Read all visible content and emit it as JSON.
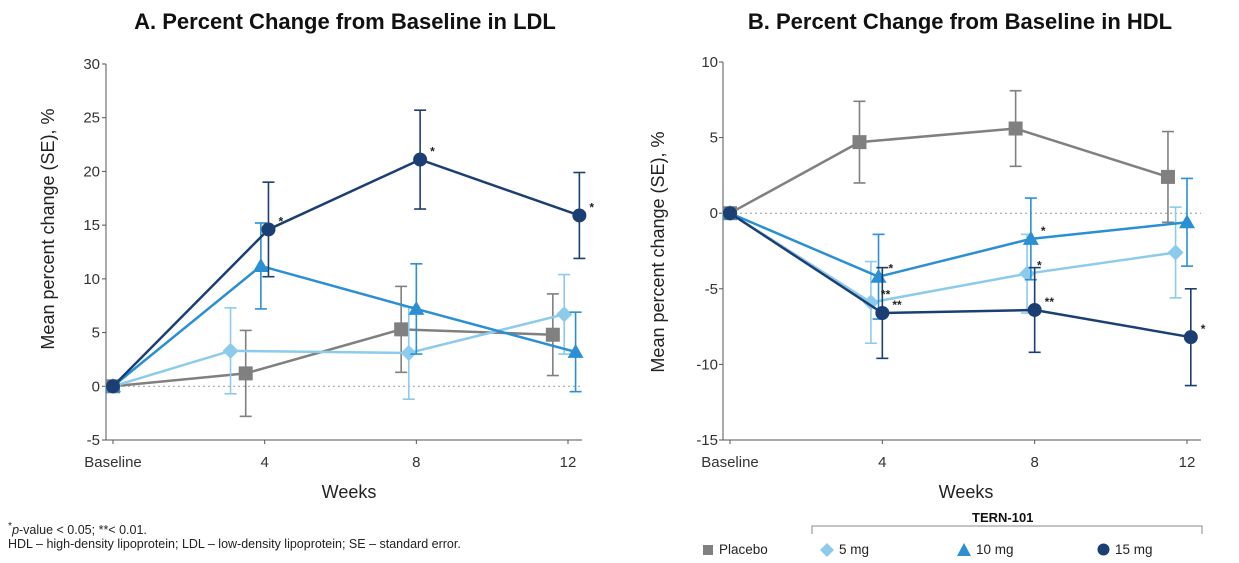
{
  "chart_data": [
    {
      "type": "line",
      "title": "A. Percent Change from Baseline in LDL",
      "xlabel": "Weeks",
      "ylabel": "Mean percent change (SE), %",
      "x_ticks": [
        "Baseline",
        "4",
        "8",
        "12"
      ],
      "x_values": [
        0,
        4,
        8,
        12
      ],
      "ylim": [
        -5,
        30
      ],
      "y_ticks": [
        -5,
        0,
        5,
        10,
        15,
        20,
        25,
        30
      ],
      "reference_line": 0,
      "series": [
        {
          "key": "placebo",
          "x": [
            0,
            4,
            8,
            12
          ],
          "values": [
            0,
            1.2,
            5.3,
            4.8
          ],
          "se": [
            0,
            4.0,
            4.0,
            3.8
          ],
          "x_offset": [
            0,
            -0.5,
            -0.4,
            -0.4
          ]
        },
        {
          "key": "5mg",
          "x": [
            0,
            4,
            8,
            12
          ],
          "values": [
            0,
            3.3,
            3.1,
            6.7
          ],
          "se": [
            0,
            4.0,
            4.3,
            3.7
          ],
          "x_offset": [
            0,
            -0.9,
            -0.2,
            -0.1
          ]
        },
        {
          "key": "10mg",
          "x": [
            0,
            4,
            8,
            12
          ],
          "values": [
            0,
            11.2,
            7.2,
            3.2
          ],
          "se": [
            0,
            4.0,
            4.2,
            3.7
          ],
          "x_offset": [
            0,
            -0.1,
            0.0,
            0.2
          ]
        },
        {
          "key": "15mg",
          "x": [
            0,
            4,
            8,
            12
          ],
          "values": [
            0,
            14.6,
            21.1,
            15.9
          ],
          "se": [
            0,
            4.4,
            4.6,
            4.0
          ],
          "x_offset": [
            0,
            0.1,
            0.1,
            0.3
          ]
        }
      ],
      "annotations": [
        {
          "text": "*",
          "series": "15mg",
          "point": 1
        },
        {
          "text": "*",
          "series": "15mg",
          "point": 2
        },
        {
          "text": "*",
          "series": "15mg",
          "point": 3
        }
      ]
    },
    {
      "type": "line",
      "title": "B. Percent Change from Baseline in HDL",
      "xlabel": "Weeks",
      "ylabel": "Mean percent change (SE),  %",
      "x_ticks": [
        "Baseline",
        "4",
        "8",
        "12"
      ],
      "x_values": [
        0,
        4,
        8,
        12
      ],
      "ylim": [
        -15,
        10
      ],
      "y_ticks": [
        -15,
        -10,
        -5,
        0,
        5,
        10
      ],
      "reference_line": 0,
      "series": [
        {
          "key": "placebo",
          "x": [
            0,
            4,
            8,
            12
          ],
          "values": [
            0,
            4.7,
            5.6,
            2.4
          ],
          "se": [
            0,
            2.7,
            2.5,
            3.0
          ],
          "x_offset": [
            0,
            -0.6,
            -0.5,
            -0.5
          ]
        },
        {
          "key": "5mg",
          "x": [
            0,
            4,
            8,
            12
          ],
          "values": [
            0,
            -5.9,
            -4.0,
            -2.6
          ],
          "se": [
            0,
            2.7,
            2.6,
            3.0
          ],
          "x_offset": [
            0,
            -0.3,
            -0.2,
            -0.3
          ]
        },
        {
          "key": "10mg",
          "x": [
            0,
            4,
            8,
            12
          ],
          "values": [
            0,
            -4.2,
            -1.7,
            -0.6
          ],
          "se": [
            0,
            2.8,
            2.7,
            2.9
          ],
          "x_offset": [
            0,
            -0.1,
            -0.1,
            0.0
          ]
        },
        {
          "key": "15mg",
          "x": [
            0,
            4,
            8,
            12
          ],
          "values": [
            0,
            -6.6,
            -6.4,
            -8.2
          ],
          "se": [
            0,
            3.0,
            2.8,
            3.2
          ],
          "x_offset": [
            0,
            0.0,
            0.0,
            0.1
          ]
        }
      ],
      "annotations": [
        {
          "text": "**",
          "series": "5mg",
          "point": 1
        },
        {
          "text": "*",
          "series": "10mg",
          "point": 1
        },
        {
          "text": "**",
          "series": "15mg",
          "point": 1
        },
        {
          "text": "*",
          "series": "5mg",
          "point": 2
        },
        {
          "text": "*",
          "series": "10mg",
          "point": 2
        },
        {
          "text": "**",
          "series": "15mg",
          "point": 2
        },
        {
          "text": "*",
          "series": "15mg",
          "point": 3
        }
      ]
    }
  ],
  "styles": {
    "placebo": {
      "color": "#808080",
      "marker": "square"
    },
    "5mg": {
      "color": "#8ccbec",
      "marker": "diamond"
    },
    "10mg": {
      "color": "#2b8fd4",
      "marker": "triangle"
    },
    "15mg": {
      "color": "#1c3f73",
      "marker": "circle"
    }
  },
  "footnote": {
    "line1_p": "p",
    "line1_rest": "-value < 0.05; **< 0.01.",
    "line2": "HDL – high-density lipoprotein; LDL – low-density lipoprotein; SE – standard error."
  },
  "legend": {
    "group_title": "TERN-101",
    "items": [
      {
        "key": "placebo",
        "label": "Placebo"
      },
      {
        "key": "5mg",
        "label": "5 mg"
      },
      {
        "key": "10mg",
        "label": "10 mg"
      },
      {
        "key": "15mg",
        "label": "15 mg"
      }
    ]
  }
}
